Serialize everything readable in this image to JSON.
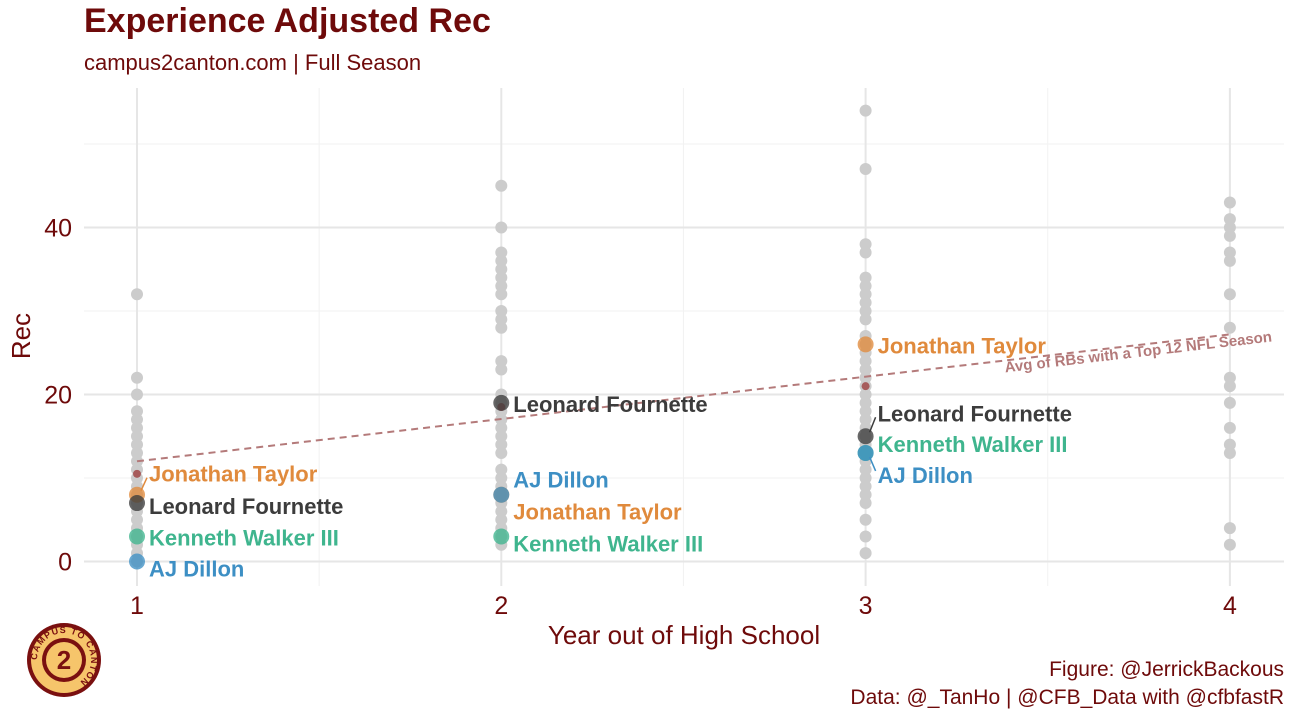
{
  "title": "Experience Adjusted Rec",
  "subtitle": "campus2canton.com | Full Season",
  "caption": {
    "line1": "Figure: @JerrickBackous",
    "line2": "Data: @_TanHo | @CFB_Data with @cfbfastR"
  },
  "logo": {
    "icon": "campus2canton-logo-icon",
    "text": "CAMPUS TO CANTON"
  },
  "colors": {
    "title": "#6e0a0a",
    "background_points": "#cccccc",
    "avg_line": "#b47a7a",
    "Jonathan Taylor": "#e08a3c",
    "Leonard Fournette": "#3c3c3c",
    "Kenneth Walker III": "#3fb58e",
    "AJ Dillon": "#3d8fc4"
  },
  "chart_data": {
    "type": "scatter",
    "xlabel": "Year out of High School",
    "ylabel": "Rec",
    "xlim": [
      0.92,
      4.15
    ],
    "ylim": [
      -3,
      57
    ],
    "x_ticks": [
      1,
      2,
      3,
      4
    ],
    "y_ticks": [
      0,
      20,
      40
    ],
    "grid": true,
    "background": {
      "1": [
        32,
        22,
        20,
        18,
        17,
        16,
        15,
        14,
        13,
        12,
        11,
        10,
        9,
        8,
        7,
        6,
        5,
        4,
        3,
        2,
        1,
        0
      ],
      "2": [
        45,
        40,
        37,
        36,
        35,
        34,
        33,
        32,
        30,
        29,
        28,
        24,
        23,
        20,
        19,
        18,
        17,
        16,
        15,
        14,
        13,
        11,
        10,
        9,
        8,
        7,
        6,
        5,
        4,
        3,
        2
      ],
      "3": [
        54,
        47,
        38,
        37,
        34,
        33,
        32,
        31,
        30,
        29,
        27,
        26,
        25,
        24,
        23,
        22,
        21,
        20,
        19,
        18,
        17,
        16,
        15,
        14,
        13,
        12,
        11,
        10,
        9,
        8,
        7,
        5,
        3,
        1
      ],
      "4": [
        43,
        41,
        40,
        39,
        37,
        36,
        32,
        28,
        22,
        21,
        19,
        16,
        14,
        13,
        4,
        2
      ]
    },
    "avg_points": [
      {
        "x": 1,
        "y": 10.5
      },
      {
        "x": 2,
        "y": 18.5
      },
      {
        "x": 3,
        "y": 21
      }
    ],
    "avg_line": {
      "start": [
        1,
        12
      ],
      "end": [
        4,
        27.2
      ],
      "label": "Avg of RBs with a Top 12 NFL Season"
    },
    "series": [
      {
        "name": "Jonathan Taylor",
        "points": [
          {
            "x": 1,
            "y": 8
          },
          {
            "x": 2,
            "y": 8
          },
          {
            "x": 3,
            "y": 26
          }
        ]
      },
      {
        "name": "Leonard Fournette",
        "points": [
          {
            "x": 1,
            "y": 7
          },
          {
            "x": 2,
            "y": 19
          },
          {
            "x": 3,
            "y": 15
          }
        ]
      },
      {
        "name": "Kenneth Walker III",
        "points": [
          {
            "x": 1,
            "y": 3
          },
          {
            "x": 2,
            "y": 3
          },
          {
            "x": 3,
            "y": 13
          }
        ]
      },
      {
        "name": "AJ Dillon",
        "points": [
          {
            "x": 1,
            "y": 0
          },
          {
            "x": 2,
            "y": 8
          },
          {
            "x": 3,
            "y": 13
          }
        ]
      }
    ]
  }
}
